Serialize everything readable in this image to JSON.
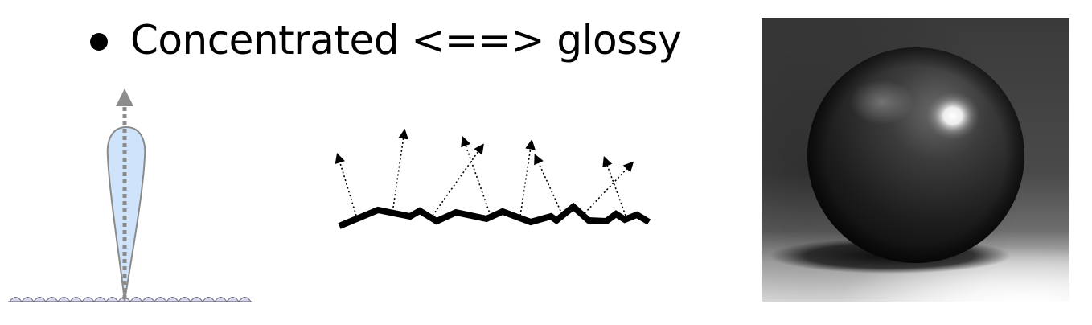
{
  "slide": {
    "bullet_text": "Concentrated <==> glossy"
  },
  "colors": {
    "lobe_fill": "#cfe3fa",
    "lobe_stroke": "#8a8a8a",
    "surface_bumps": "#d8d6ea",
    "arrow_gray": "#8c8c8c",
    "rough_surface": "#000000"
  },
  "icons": {
    "bullet": "filled-circle",
    "reflection_arrow": "dotted-arrow"
  }
}
